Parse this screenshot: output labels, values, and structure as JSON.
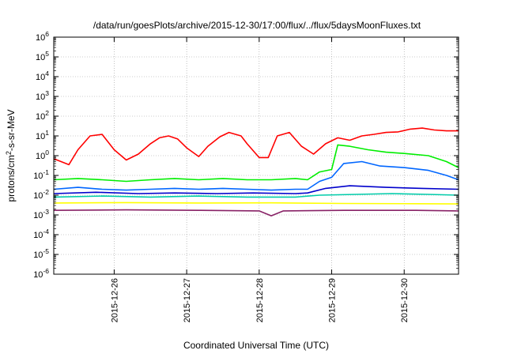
{
  "chart_data": {
    "type": "line",
    "title": "/data/run/goesPlots/archive/2015-12-30/17:00/flux/../flux/5daysMoonFluxes.txt",
    "xlabel": "Coordinated Universal Time (UTC)",
    "ylabel": "protons/cm2-s-sr-MeV",
    "ylabel_parts": {
      "before": "protons/cm",
      "sup": "2",
      "after": "-s-sr-MeV"
    },
    "yscale": "log",
    "ylim_exponent": [
      -6,
      6
    ],
    "y_tick_base": "10",
    "y_tick_exponents": [
      "-6",
      "-5",
      "-4",
      "-3",
      "-2",
      "-1",
      "0",
      "1",
      "2",
      "3",
      "4",
      "5",
      "6"
    ],
    "xlim": [
      "2015-12-25 04:00",
      "2015-12-30 18:00"
    ],
    "x_ticks": [
      "2015-12-26",
      "2015-12-27",
      "2015-12-28",
      "2015-12-29",
      "2015-12-30"
    ],
    "grid": true,
    "series": [
      {
        "color": "#ff0000",
        "x": [
          "2015-12-25 04:00",
          "2015-12-25 09:00",
          "2015-12-25 12:00",
          "2015-12-25 16:00",
          "2015-12-25 20:00",
          "2015-12-26 00:00",
          "2015-12-26 04:00",
          "2015-12-26 08:00",
          "2015-12-26 12:00",
          "2015-12-26 15:00",
          "2015-12-26 18:00",
          "2015-12-26 21:00",
          "2015-12-27 00:00",
          "2015-12-27 04:00",
          "2015-12-27 07:00",
          "2015-12-27 11:00",
          "2015-12-27 14:00",
          "2015-12-27 18:00",
          "2015-12-27 20:00",
          "2015-12-28 00:00",
          "2015-12-28 03:00",
          "2015-12-28 06:00",
          "2015-12-28 10:00",
          "2015-12-28 14:00",
          "2015-12-28 18:00",
          "2015-12-28 22:00",
          "2015-12-29 02:00",
          "2015-12-29 06:00",
          "2015-12-29 10:00",
          "2015-12-29 14:00",
          "2015-12-29 18:00",
          "2015-12-29 22:00",
          "2015-12-30 02:00",
          "2015-12-30 06:00",
          "2015-12-30 10:00",
          "2015-12-30 14:00",
          "2015-12-30 18:00"
        ],
        "y": [
          0.7,
          0.35,
          2,
          10,
          12,
          2,
          0.6,
          1.2,
          4,
          8,
          10,
          7,
          2.5,
          0.9,
          3,
          9,
          15,
          10,
          4,
          0.8,
          0.8,
          10,
          15,
          3,
          1.2,
          4,
          8,
          6,
          10,
          12,
          15,
          16,
          22,
          25,
          20,
          18,
          18
        ]
      },
      {
        "color": "#00ee00",
        "x": [
          "2015-12-25 04:00",
          "2015-12-25 12:00",
          "2015-12-25 20:00",
          "2015-12-26 04:00",
          "2015-12-26 12:00",
          "2015-12-26 20:00",
          "2015-12-27 04:00",
          "2015-12-27 12:00",
          "2015-12-27 20:00",
          "2015-12-28 04:00",
          "2015-12-28 12:00",
          "2015-12-28 16:00",
          "2015-12-28 20:00",
          "2015-12-29 00:00",
          "2015-12-29 02:00",
          "2015-12-29 06:00",
          "2015-12-29 12:00",
          "2015-12-29 18:00",
          "2015-12-30 00:00",
          "2015-12-30 08:00",
          "2015-12-30 14:00",
          "2015-12-30 18:00"
        ],
        "y": [
          0.06,
          0.07,
          0.06,
          0.05,
          0.06,
          0.07,
          0.06,
          0.07,
          0.06,
          0.06,
          0.07,
          0.06,
          0.15,
          0.2,
          3.5,
          3,
          2,
          1.5,
          1.3,
          1,
          0.5,
          0.25
        ]
      },
      {
        "color": "#0066ff",
        "x": [
          "2015-12-25 04:00",
          "2015-12-25 12:00",
          "2015-12-25 20:00",
          "2015-12-26 04:00",
          "2015-12-26 12:00",
          "2015-12-26 20:00",
          "2015-12-27 04:00",
          "2015-12-27 12:00",
          "2015-12-27 20:00",
          "2015-12-28 04:00",
          "2015-12-28 12:00",
          "2015-12-28 16:00",
          "2015-12-28 20:00",
          "2015-12-29 00:00",
          "2015-12-29 04:00",
          "2015-12-29 10:00",
          "2015-12-29 16:00",
          "2015-12-30 00:00",
          "2015-12-30 08:00",
          "2015-12-30 14:00",
          "2015-12-30 18:00"
        ],
        "y": [
          0.02,
          0.025,
          0.02,
          0.018,
          0.02,
          0.022,
          0.02,
          0.022,
          0.02,
          0.018,
          0.02,
          0.02,
          0.05,
          0.08,
          0.4,
          0.5,
          0.3,
          0.25,
          0.18,
          0.1,
          0.06
        ]
      },
      {
        "color": "#0000cc",
        "x": [
          "2015-12-25 04:00",
          "2015-12-25 18:00",
          "2015-12-26 08:00",
          "2015-12-26 20:00",
          "2015-12-27 10:00",
          "2015-12-27 22:00",
          "2015-12-28 12:00",
          "2015-12-28 16:00",
          "2015-12-28 22:00",
          "2015-12-29 06:00",
          "2015-12-29 18:00",
          "2015-12-30 06:00",
          "2015-12-30 18:00"
        ],
        "y": [
          0.012,
          0.014,
          0.012,
          0.013,
          0.012,
          0.013,
          0.012,
          0.013,
          0.022,
          0.03,
          0.025,
          0.022,
          0.02
        ]
      },
      {
        "color": "#00ccaa",
        "x": [
          "2015-12-25 04:00",
          "2015-12-25 20:00",
          "2015-12-26 12:00",
          "2015-12-27 04:00",
          "2015-12-27 20:00",
          "2015-12-28 12:00",
          "2015-12-28 20:00",
          "2015-12-29 08:00",
          "2015-12-29 20:00",
          "2015-12-30 08:00",
          "2015-12-30 18:00"
        ],
        "y": [
          0.008,
          0.009,
          0.008,
          0.009,
          0.008,
          0.008,
          0.01,
          0.011,
          0.012,
          0.011,
          0.01
        ]
      },
      {
        "color": "#ffff00",
        "x": [
          "2015-12-25 04:00",
          "2015-12-26 04:00",
          "2015-12-27 04:00",
          "2015-12-28 04:00",
          "2015-12-29 04:00",
          "2015-12-30 04:00",
          "2015-12-30 18:00"
        ],
        "y": [
          0.004,
          0.0042,
          0.004,
          0.0041,
          0.0038,
          0.0037,
          0.0036
        ]
      },
      {
        "color": "#882266",
        "x": [
          "2015-12-25 04:00",
          "2015-12-26 04:00",
          "2015-12-27 04:00",
          "2015-12-28 00:00",
          "2015-12-28 04:00",
          "2015-12-28 08:00",
          "2015-12-29 04:00",
          "2015-12-30 04:00",
          "2015-12-30 18:00"
        ],
        "y": [
          0.0017,
          0.0018,
          0.0017,
          0.0016,
          0.0009,
          0.0016,
          0.0017,
          0.0017,
          0.0016
        ]
      }
    ]
  }
}
